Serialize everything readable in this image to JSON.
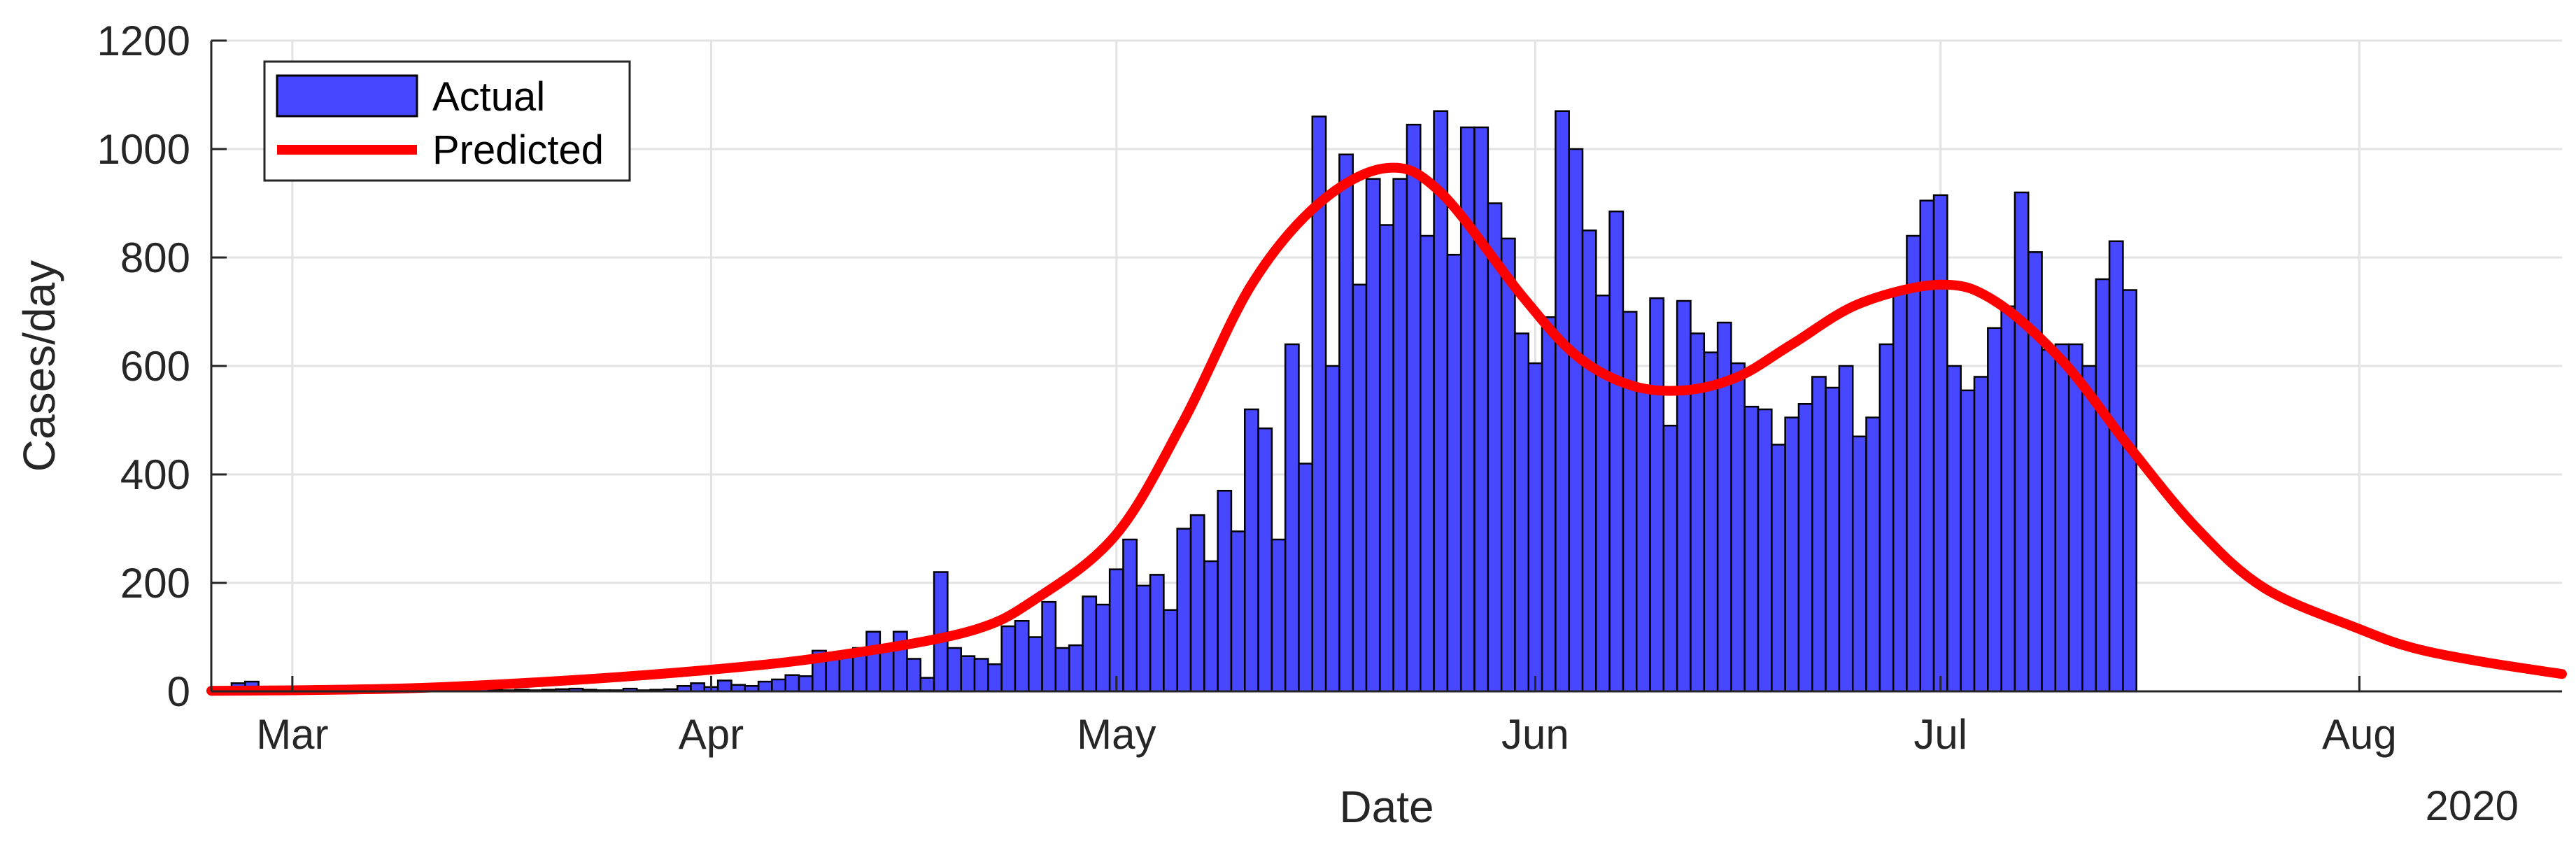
{
  "chart_data": {
    "type": "bar",
    "xlabel": "Date",
    "ylabel": "Cases/day",
    "year_label": "2020",
    "ylim": [
      0,
      1200
    ],
    "yticks": [
      0,
      200,
      400,
      600,
      800,
      1000,
      1200
    ],
    "xlim": [
      "2020-02-24",
      "2020-08-16"
    ],
    "xticks": [
      {
        "date": "2020-03-01",
        "label": "Mar"
      },
      {
        "date": "2020-04-01",
        "label": "Apr"
      },
      {
        "date": "2020-05-01",
        "label": "May"
      },
      {
        "date": "2020-06-01",
        "label": "Jun"
      },
      {
        "date": "2020-07-01",
        "label": "Jul"
      },
      {
        "date": "2020-08-01",
        "label": "Aug"
      }
    ],
    "grid": true,
    "legend_position": "top-left",
    "series": [
      {
        "name": "Actual",
        "kind": "bar",
        "color": "#4747FF",
        "start_date": "2020-02-26",
        "values": [
          15,
          18,
          5,
          3,
          2,
          4,
          5,
          3,
          2,
          2,
          3,
          2,
          3,
          3,
          4,
          2,
          5,
          3,
          15,
          3,
          2,
          3,
          2,
          3,
          4,
          5,
          3,
          2,
          2,
          5,
          2,
          3,
          4,
          10,
          15,
          8,
          20,
          12,
          10,
          18,
          22,
          30,
          28,
          75,
          60,
          70,
          80,
          110,
          85,
          110,
          60,
          25,
          220,
          80,
          65,
          60,
          50,
          120,
          130,
          100,
          165,
          80,
          85,
          175,
          160,
          225,
          280,
          195,
          215,
          150,
          300,
          325,
          240,
          370,
          295,
          520,
          485,
          280,
          640,
          420,
          1060,
          600,
          990,
          750,
          945,
          860,
          945,
          1045,
          840,
          1070,
          805,
          1040,
          1040,
          900,
          835,
          660,
          605,
          690,
          1070,
          1000,
          850,
          730,
          885,
          700,
          560,
          725,
          490,
          720,
          660,
          625,
          680,
          605,
          525,
          520,
          455,
          505,
          530,
          580,
          560,
          600,
          470,
          505,
          640,
          740,
          840,
          905,
          915,
          600,
          555,
          580,
          670,
          710,
          920,
          810,
          630,
          640,
          640,
          600,
          760,
          830,
          740
        ]
      },
      {
        "name": "Predicted",
        "kind": "line",
        "color": "#FF0000",
        "x_dates": [
          "2020-02-24",
          "2020-03-01",
          "2020-03-10",
          "2020-03-20",
          "2020-04-01",
          "2020-04-10",
          "2020-04-20",
          "2020-04-25",
          "2020-05-01",
          "2020-05-06",
          "2020-05-11",
          "2020-05-16",
          "2020-05-21",
          "2020-05-25",
          "2020-05-31",
          "2020-06-04",
          "2020-06-08",
          "2020-06-12",
          "2020-06-16",
          "2020-06-20",
          "2020-06-25",
          "2020-07-01",
          "2020-07-05",
          "2020-07-10",
          "2020-07-15",
          "2020-07-20",
          "2020-07-25",
          "2020-08-01",
          "2020-08-05",
          "2020-08-10",
          "2020-08-16"
        ],
        "values": [
          1,
          2,
          6,
          18,
          40,
          65,
          110,
          170,
          290,
          500,
          750,
          900,
          965,
          920,
          730,
          620,
          565,
          555,
          580,
          640,
          715,
          750,
          720,
          610,
          450,
          300,
          190,
          115,
          80,
          55,
          32
        ]
      }
    ]
  }
}
